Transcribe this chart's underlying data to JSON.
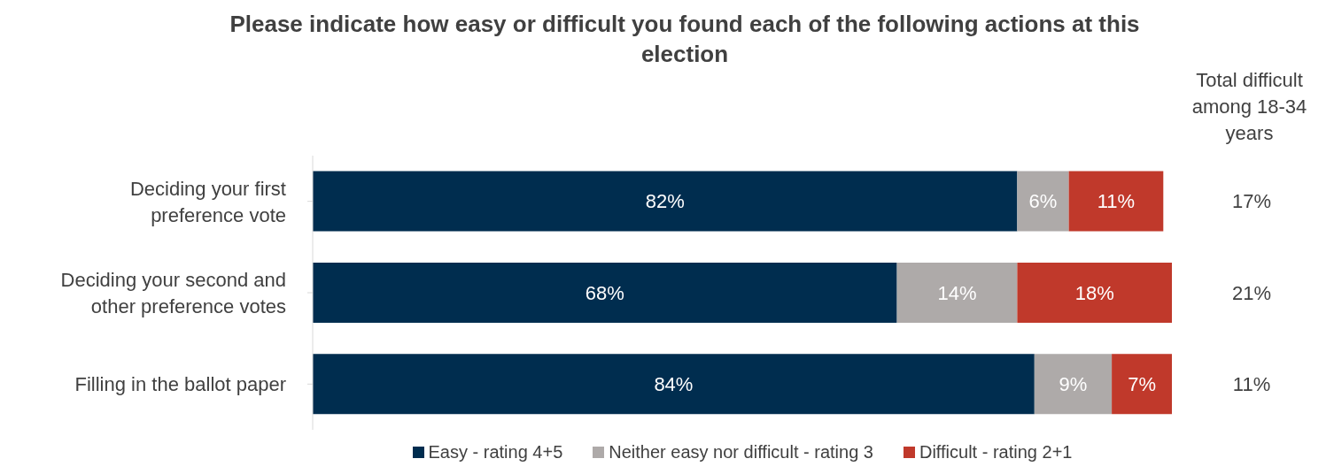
{
  "chart_data": {
    "type": "bar",
    "orientation": "horizontal",
    "stacked": true,
    "grid": false,
    "legend": "bottom",
    "title": "Please indicate how easy or difficult you found each of the following actions at this election",
    "categories": [
      "Deciding your first preference vote",
      "Deciding your second and other preference votes",
      "Filling in the ballot paper"
    ],
    "series": [
      {
        "name": "Easy - rating 4+5",
        "color": "#002d4f",
        "values": [
          82,
          68,
          84
        ],
        "value_labels": [
          "82%",
          "68%",
          "84%"
        ]
      },
      {
        "name": "Neither easy nor difficult - rating 3",
        "color": "#aeaaa9",
        "values": [
          6,
          14,
          9
        ],
        "value_labels": [
          "6%",
          "14%",
          "9%"
        ]
      },
      {
        "name": "Difficult - rating 2+1",
        "color": "#c0392b",
        "values": [
          11,
          18,
          7
        ],
        "value_labels": [
          "11%",
          "18%",
          "7%"
        ]
      }
    ],
    "annotations": [
      "Total difficult among 18-34 years",
      "17%",
      "21%",
      "11%"
    ]
  }
}
